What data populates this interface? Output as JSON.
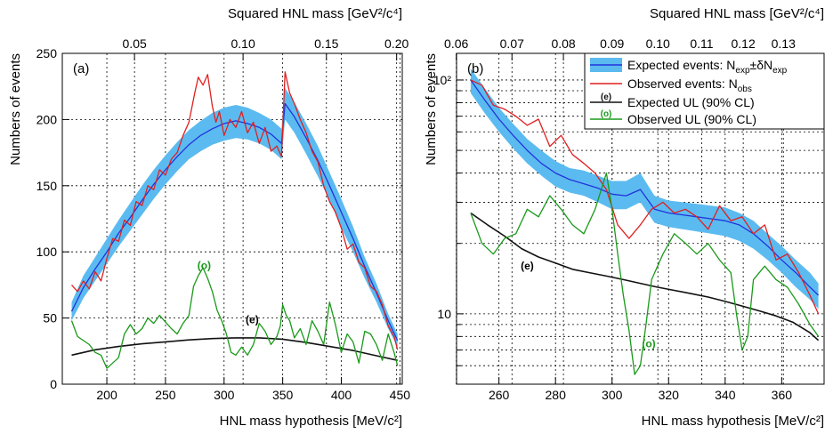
{
  "chart_data": [
    {
      "type": "line",
      "panel_label": "(a)",
      "xlabel": "HNL mass hypothesis [MeV/c²]",
      "ylabel": "Numbers of events",
      "top_axis_label": "Squared HNL mass [GeV²/c⁴]",
      "xlim": [
        162,
        452
      ],
      "ylim": [
        0,
        250
      ],
      "yscale": "linear",
      "grid": true,
      "xticks": [
        200,
        250,
        300,
        350,
        400,
        450
      ],
      "yticks": [
        0,
        50,
        100,
        150,
        200,
        250
      ],
      "top_ticks": [
        {
          "label": "0.05",
          "mass": 223.6
        },
        {
          "label": "0.10",
          "mass": 316.2
        },
        {
          "label": "0.15",
          "mass": 387.3
        },
        {
          "label": "0.20",
          "mass": 447.2
        }
      ],
      "curve_labels": [
        {
          "text": "(o)",
          "x": 283,
          "y": 87,
          "color": "#1a9a1a"
        },
        {
          "text": "(e)",
          "x": 324,
          "y": 46,
          "color": "#000000"
        }
      ],
      "band": {
        "name": "Expected events",
        "color": "#5bbbf0",
        "x": [
          170,
          180,
          190,
          200,
          210,
          220,
          230,
          240,
          250,
          260,
          270,
          280,
          290,
          300,
          310,
          320,
          330,
          340,
          349,
          352,
          360,
          370,
          380,
          390,
          400,
          410,
          420,
          430,
          440,
          448
        ],
        "low": [
          48,
          65,
          78,
          91,
          104,
          116,
          128,
          140,
          151,
          161,
          170,
          176,
          181,
          184,
          186,
          185,
          182,
          177,
          170,
          200,
          190,
          174,
          157,
          139,
          118,
          100,
          80,
          62,
          42,
          28
        ],
        "high": [
          62,
          82,
          96,
          110,
          124,
          137,
          150,
          162,
          173,
          183,
          192,
          199,
          205,
          209,
          211,
          209,
          205,
          200,
          193,
          224,
          213,
          197,
          180,
          160,
          140,
          119,
          96,
          76,
          53,
          38
        ]
      },
      "series": [
        {
          "name": "Expected events",
          "color": "#2233dd",
          "x": [
            170,
            180,
            190,
            200,
            210,
            220,
            230,
            240,
            250,
            260,
            270,
            280,
            290,
            300,
            310,
            320,
            330,
            340,
            349,
            352,
            360,
            370,
            380,
            390,
            400,
            410,
            420,
            430,
            440,
            448
          ],
          "y": [
            55,
            73,
            87,
            100,
            114,
            126,
            139,
            151,
            162,
            172,
            181,
            188,
            193,
            197,
            199,
            197,
            194,
            189,
            182,
            212,
            202,
            186,
            169,
            150,
            130,
            110,
            89,
            69,
            48,
            33
          ]
        },
        {
          "name": "Observed events",
          "color": "#e02020",
          "x": [
            170,
            175,
            180,
            185,
            190,
            195,
            200,
            205,
            210,
            215,
            220,
            225,
            230,
            235,
            240,
            245,
            250,
            255,
            260,
            265,
            270,
            275,
            278,
            282,
            286,
            290,
            293,
            296,
            300,
            305,
            310,
            315,
            320,
            325,
            330,
            335,
            340,
            345,
            349,
            352,
            356,
            360,
            365,
            370,
            375,
            380,
            385,
            390,
            395,
            400,
            405,
            410,
            415,
            420,
            425,
            430,
            435,
            440,
            445,
            448
          ],
          "y": [
            75,
            70,
            78,
            72,
            85,
            78,
            95,
            110,
            108,
            124,
            120,
            138,
            135,
            150,
            147,
            162,
            158,
            170,
            175,
            188,
            198,
            220,
            232,
            226,
            234,
            210,
            198,
            206,
            188,
            200,
            194,
            206,
            190,
            198,
            182,
            194,
            176,
            180,
            172,
            236,
            220,
            212,
            200,
            190,
            176,
            168,
            150,
            138,
            130,
            118,
            102,
            106,
            92,
            88,
            74,
            70,
            60,
            44,
            36,
            26
          ]
        },
        {
          "name": "Expected UL (90% CL)",
          "color": "#111111",
          "x": [
            170,
            190,
            210,
            230,
            250,
            270,
            290,
            310,
            330,
            350,
            370,
            390,
            410,
            430,
            448
          ],
          "y": [
            22,
            26,
            28.5,
            30.5,
            32,
            33.5,
            34.5,
            35,
            35,
            34,
            31.5,
            28.5,
            25.5,
            21.5,
            18
          ]
        },
        {
          "name": "Observed UL (90% CL)",
          "color": "#1a9a1a",
          "x": [
            170,
            175,
            180,
            185,
            190,
            195,
            200,
            205,
            210,
            215,
            220,
            225,
            230,
            235,
            240,
            245,
            250,
            255,
            260,
            265,
            270,
            274,
            278,
            282,
            286,
            290,
            294,
            298,
            302,
            306,
            310,
            315,
            320,
            325,
            330,
            335,
            340,
            345,
            348,
            350,
            353,
            356,
            360,
            365,
            370,
            375,
            380,
            385,
            390,
            395,
            400,
            405,
            410,
            415,
            420,
            425,
            430,
            435,
            440,
            445,
            448
          ],
          "y": [
            48,
            36,
            33,
            30,
            24,
            22,
            12,
            16,
            20,
            38,
            45,
            38,
            42,
            50,
            46,
            52,
            47,
            42,
            38,
            46,
            52,
            74,
            82,
            88,
            80,
            70,
            56,
            48,
            38,
            24,
            22,
            28,
            22,
            30,
            46,
            40,
            30,
            36,
            44,
            60,
            52,
            48,
            35,
            42,
            30,
            48,
            40,
            30,
            62,
            45,
            24,
            38,
            32,
            16,
            40,
            38,
            30,
            18,
            38,
            24,
            14
          ]
        }
      ]
    },
    {
      "type": "line",
      "panel_label": "(b)",
      "xlabel": "HNL mass hypothesis [MeV/c²]",
      "ylabel": "Numbers of events",
      "top_axis_label": "Squared HNL mass [GeV²/c⁴]",
      "xlim": [
        245,
        375
      ],
      "ylim": [
        5,
        130
      ],
      "yscale": "log",
      "grid": true,
      "xticks": [
        260,
        280,
        300,
        320,
        340,
        360
      ],
      "yticks": [
        10,
        100
      ],
      "ytick_labels": [
        "10",
        "10²"
      ],
      "minor_yticks": [
        6,
        7,
        8,
        9,
        20,
        30,
        40,
        50,
        60,
        70,
        80,
        90
      ],
      "top_ticks": [
        {
          "label": "0.06",
          "mass": 244.9
        },
        {
          "label": "0.07",
          "mass": 264.6
        },
        {
          "label": "0.08",
          "mass": 282.8
        },
        {
          "label": "0.09",
          "mass": 300.0
        },
        {
          "label": "0.10",
          "mass": 316.2
        },
        {
          "label": "0.11",
          "mass": 331.7
        },
        {
          "label": "0.12",
          "mass": 346.4
        },
        {
          "label": "0.13",
          "mass": 360.6
        }
      ],
      "legend": {
        "placement": "top-right",
        "entries": [
          {
            "key": "band",
            "label": "Expected events: N",
            "sub1": "exp",
            "mid": "±δN",
            "sub2": "exp"
          },
          {
            "key": "observed",
            "label": "Observed events: N",
            "sub1": "obs"
          },
          {
            "key": "expected_ul",
            "tag": "(e)",
            "label": "Expected UL (90% CL)"
          },
          {
            "key": "observed_ul",
            "tag": "(o)",
            "label": "Observed UL (90% CL)"
          }
        ]
      },
      "curve_labels": [
        {
          "text": "(e)",
          "x": 270,
          "y": 15.5,
          "color": "#000000"
        },
        {
          "text": "(o)",
          "x": 313,
          "y": 7.2,
          "color": "#1a9a1a"
        }
      ],
      "band": {
        "name": "Expected events",
        "color": "#5bbbf0",
        "x": [
          250,
          255,
          260,
          265,
          270,
          275,
          280,
          285,
          290,
          295,
          300,
          305,
          310,
          315,
          320,
          325,
          330,
          335,
          340,
          345,
          350,
          355,
          360,
          365,
          370,
          373
        ],
        "low": [
          88,
          72,
          60,
          51,
          44,
          39,
          35,
          33,
          32,
          30,
          28,
          28,
          30,
          24.5,
          23.5,
          23,
          22.5,
          22,
          21.5,
          20.5,
          19,
          17,
          15,
          13,
          11.5,
          10.5
        ],
        "high": [
          112,
          92,
          76,
          65,
          56,
          50,
          45,
          42,
          41,
          39,
          37,
          37,
          40,
          32,
          30.5,
          30,
          29.5,
          29,
          28.5,
          27,
          25,
          22,
          19.5,
          17,
          15,
          13.5
        ]
      },
      "series": [
        {
          "name": "Expected events",
          "color": "#2233dd",
          "x": [
            250,
            255,
            260,
            265,
            270,
            275,
            280,
            285,
            290,
            295,
            300,
            305,
            310,
            315,
            320,
            325,
            330,
            335,
            340,
            345,
            350,
            355,
            360,
            365,
            370,
            373
          ],
          "y": [
            100,
            82,
            68,
            58,
            50,
            44,
            40,
            37.5,
            36,
            34.5,
            32.5,
            32,
            34,
            28,
            27,
            26.5,
            26,
            25.5,
            25,
            24,
            22,
            19.5,
            17,
            15,
            13,
            12
          ]
        },
        {
          "name": "Observed events",
          "color": "#e02020",
          "x": [
            250,
            254,
            258,
            262,
            266,
            270,
            274,
            278,
            282,
            286,
            290,
            294,
            298,
            302,
            306,
            310,
            314,
            318,
            322,
            326,
            330,
            334,
            338,
            342,
            346,
            350,
            354,
            358,
            362,
            366,
            370,
            373
          ],
          "y": [
            100,
            95,
            78,
            75,
            70,
            64,
            68,
            52,
            58,
            48,
            44,
            40,
            34,
            24,
            21,
            24,
            28,
            30,
            27,
            28,
            26,
            23,
            29,
            25,
            26,
            22,
            24,
            17,
            18,
            15,
            12,
            10
          ]
        },
        {
          "name": "Expected UL (90% CL)",
          "color": "#111111",
          "x": [
            250,
            256,
            262,
            268,
            274,
            280,
            286,
            292,
            298,
            304,
            310,
            316,
            322,
            328,
            334,
            340,
            346,
            352,
            358,
            364,
            370,
            373
          ],
          "y": [
            27,
            24,
            21.5,
            19,
            17.5,
            16.5,
            15.5,
            15,
            14.5,
            14,
            13.5,
            13,
            12.6,
            12.2,
            11.8,
            11.3,
            10.8,
            10.3,
            9.8,
            9.2,
            8.3,
            7.7
          ]
        },
        {
          "name": "Observed UL (90% CL)",
          "color": "#1a9a1a",
          "x": [
            250,
            254,
            258,
            262,
            266,
            270,
            274,
            278,
            282,
            286,
            290,
            294,
            298,
            300,
            302,
            304,
            306,
            308,
            310,
            312,
            314,
            318,
            322,
            326,
            330,
            334,
            338,
            342,
            344,
            346,
            348,
            350,
            354,
            358,
            362,
            366,
            370,
            373
          ],
          "y": [
            27,
            20,
            18,
            21,
            22,
            28,
            26,
            32,
            28,
            24,
            22,
            28,
            40,
            28,
            18,
            12,
            8.5,
            5.5,
            6,
            9,
            14,
            18,
            22,
            20,
            18,
            20,
            17,
            15,
            10,
            7,
            8,
            14,
            16,
            14,
            13,
            11,
            9,
            8
          ]
        }
      ]
    }
  ]
}
